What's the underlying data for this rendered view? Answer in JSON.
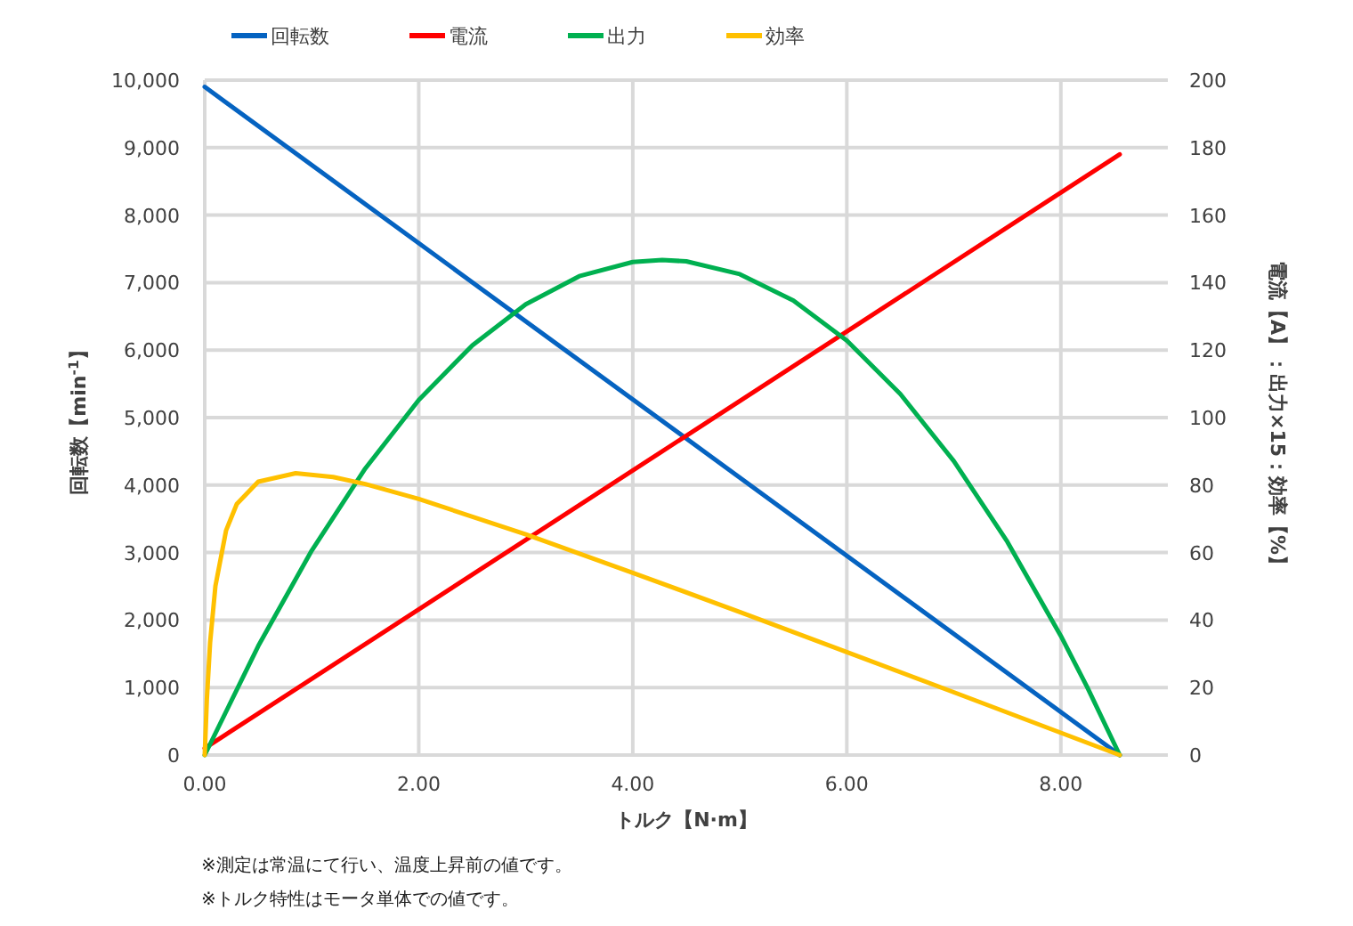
{
  "chart_data": {
    "type": "line",
    "xlabel": "トルク【N·m】",
    "ylabel": "回転数【min$^{-1}$】",
    "y2label": "電流【A】：出力×15：効率【%】",
    "xlim": [
      0,
      9
    ],
    "xticks": [
      {
        "value": 0,
        "label": "0.00"
      },
      {
        "value": 2,
        "label": "2.00"
      },
      {
        "value": 4,
        "label": "4.00"
      },
      {
        "value": 6,
        "label": "6.00"
      },
      {
        "value": 8,
        "label": "8.00"
      }
    ],
    "ylim": [
      0,
      10000
    ],
    "yticks": [
      {
        "value": 0,
        "label": "0"
      },
      {
        "value": 1000,
        "label": "1,000"
      },
      {
        "value": 2000,
        "label": "2,000"
      },
      {
        "value": 3000,
        "label": "3,000"
      },
      {
        "value": 4000,
        "label": "4,000"
      },
      {
        "value": 5000,
        "label": "5,000"
      },
      {
        "value": 6000,
        "label": "6,000"
      },
      {
        "value": 7000,
        "label": "7,000"
      },
      {
        "value": 8000,
        "label": "8,000"
      },
      {
        "value": 9000,
        "label": "9,000"
      },
      {
        "value": 10000,
        "label": "10,000"
      }
    ],
    "y2lim": [
      0,
      200
    ],
    "y2ticks": [
      0,
      20,
      40,
      60,
      80,
      100,
      120,
      140,
      160,
      180,
      200
    ],
    "grid": true,
    "legend": "top",
    "series": [
      {
        "name": "回転数",
        "color": "#0563c1",
        "x": [
          0,
          8.55
        ],
        "values": [
          9900,
          0
        ]
      },
      {
        "name": "電流",
        "color": "#ff0000",
        "axis": "y2",
        "x": [
          0,
          8.55
        ],
        "values": [
          2,
          178
        ]
      },
      {
        "name": "出力",
        "color": "#00b050",
        "axis": "y2",
        "x": [
          0,
          0.5,
          1,
          1.5,
          2,
          2.5,
          3,
          3.5,
          4,
          4.275,
          4.5,
          5,
          5.5,
          6,
          6.5,
          7,
          7.5,
          8,
          8.25,
          8.55
        ],
        "values": [
          0,
          32.3,
          60.6,
          84.9,
          105.2,
          121.4,
          133.6,
          141.9,
          146.1,
          146.7,
          146.3,
          142.5,
          134.7,
          122.8,
          107.0,
          87.1,
          63.2,
          35.3,
          19.9,
          0
        ]
      },
      {
        "name": "効率",
        "color": "#ffc000",
        "axis": "y2",
        "x": [
          0,
          0.02,
          0.05,
          0.1,
          0.2,
          0.3,
          0.5,
          0.85,
          1.2,
          1.5,
          2,
          3,
          4,
          5,
          6,
          7,
          8,
          8.55
        ],
        "values": [
          0,
          16.6,
          33.3,
          50.1,
          66.6,
          74.4,
          81.0,
          83.5,
          82.4,
          80.3,
          75.9,
          65.4,
          54.0,
          42.4,
          30.5,
          18.6,
          6.6,
          0
        ]
      }
    ],
    "annotations": [
      "※測定は常温にて行い、温度上昇前の値です。",
      "※トルク特性はモータ単体での値です。"
    ]
  }
}
